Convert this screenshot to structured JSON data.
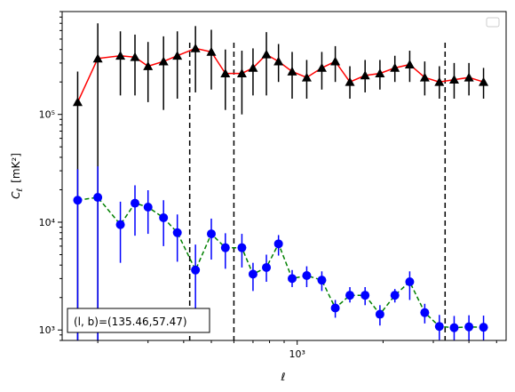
{
  "chart_data": {
    "type": "scatter",
    "xlabel": "ℓ",
    "ylabel_main": "C",
    "ylabel_sub": "ℓ",
    "ylabel_unit": "[mK²]",
    "x_scale": "log",
    "y_scale": "log",
    "xlim": [
      150,
      5400
    ],
    "ylim": [
      800,
      900000
    ],
    "x_ticks": [
      {
        "value": 1000,
        "label": "10³"
      }
    ],
    "y_ticks": [
      {
        "value": 1000,
        "label": "10³"
      },
      {
        "value": 10000,
        "label": "10⁴"
      },
      {
        "value": 100000,
        "label": "10⁵"
      }
    ],
    "vlines": [
      420,
      600,
      3300
    ],
    "legend": {
      "placement": "top-right",
      "entries": []
    },
    "annotation": "(l, b)=(135.46,57.47)",
    "series": [
      {
        "marker": "triangle",
        "marker_color": "#000000",
        "line_color": "#ff0000",
        "line_style": "solid",
        "x": [
          170,
          200,
          240,
          270,
          300,
          340,
          380,
          440,
          500,
          560,
          640,
          700,
          780,
          860,
          960,
          1080,
          1220,
          1360,
          1530,
          1730,
          1950,
          2200,
          2480,
          2800,
          3150,
          3550,
          4000,
          4500
        ],
        "y": [
          130000,
          330000,
          350000,
          340000,
          280000,
          310000,
          350000,
          410000,
          380000,
          240000,
          240000,
          270000,
          360000,
          310000,
          250000,
          220000,
          270000,
          310000,
          200000,
          230000,
          240000,
          270000,
          290000,
          220000,
          200000,
          210000,
          220000,
          200000
        ],
        "err_low": [
          130000,
          330000,
          200000,
          190000,
          150000,
          200000,
          210000,
          250000,
          210000,
          130000,
          140000,
          120000,
          210000,
          110000,
          110000,
          80000,
          100000,
          110000,
          60000,
          70000,
          70000,
          70000,
          90000,
          70000,
          60000,
          70000,
          70000,
          60000
        ],
        "err_high": [
          120000,
          370000,
          240000,
          210000,
          190000,
          220000,
          240000,
          250000,
          230000,
          160000,
          150000,
          140000,
          220000,
          140000,
          130000,
          100000,
          110000,
          120000,
          80000,
          90000,
          80000,
          80000,
          100000,
          90000,
          80000,
          90000,
          80000,
          70000
        ]
      },
      {
        "marker": "circle",
        "marker_color": "#0000ff",
        "line_color": "#008000",
        "line_style": "dashed",
        "x": [
          170,
          200,
          240,
          270,
          300,
          340,
          380,
          440,
          500,
          560,
          640,
          700,
          780,
          860,
          960,
          1080,
          1220,
          1360,
          1530,
          1730,
          1950,
          2200,
          2480,
          2800,
          3150,
          3550,
          4000,
          4500
        ],
        "y": [
          16000,
          17000,
          9500,
          15000,
          13800,
          11000,
          8000,
          3600,
          7800,
          5800,
          5800,
          3300,
          3800,
          6300,
          3000,
          3200,
          2900,
          1600,
          2100,
          2100,
          1400,
          2100,
          2800,
          1450,
          1080,
          1050,
          1070,
          1060
        ],
        "err_low": [
          15300,
          16300,
          5300,
          7500,
          6000,
          5000,
          3700,
          2000,
          3300,
          2100,
          2000,
          1000,
          1000,
          1400,
          500,
          700,
          600,
          300,
          300,
          400,
          300,
          300,
          900,
          300,
          270,
          270,
          270,
          270
        ],
        "err_high": [
          15000,
          16000,
          6000,
          7000,
          6000,
          5000,
          3800,
          2600,
          3000,
          2100,
          2000,
          900,
          1200,
          1300,
          600,
          700,
          600,
          300,
          400,
          400,
          300,
          300,
          700,
          300,
          300,
          300,
          300,
          300
        ]
      }
    ]
  }
}
